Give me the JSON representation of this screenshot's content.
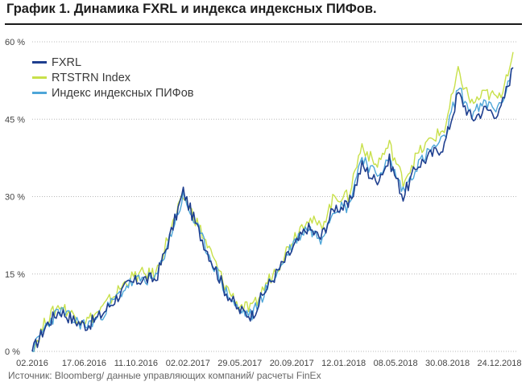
{
  "title": "График 1. Динамика FXRL и индекса индексных ПИФов.",
  "source": "Источник: Bloomberg/ данные управляющих компаний/ расчеты FinEx",
  "chart_data": {
    "type": "line",
    "title": "График 1. Динамика FXRL и индекса индексных ПИФов.",
    "xlabel": "",
    "ylabel": "",
    "ylim": [
      0,
      60
    ],
    "y_ticks": [
      0,
      15,
      30,
      45,
      60
    ],
    "y_tick_labels": [
      "0 %",
      "15 %",
      "30 %",
      "45 %",
      "60 %"
    ],
    "x_tick_labels": [
      "02.2016",
      "17.06.2016",
      "11.10.2016",
      "02.02.2017",
      "29.05.2017",
      "20.09.2017",
      "12.01.2018",
      "08.05.2018",
      "30.08.2018",
      "24.12.2018"
    ],
    "grid": "horizontal dotted",
    "legend_position": "top-left",
    "x": [
      "02.2016",
      "03.2016",
      "04.2016",
      "05.2016",
      "06.2016",
      "07.2016",
      "08.2016",
      "09.2016",
      "10.2016",
      "11.2016",
      "12.2016",
      "01.2017",
      "02.2017",
      "03.2017",
      "04.2017",
      "05.2017",
      "06.2017",
      "07.2017",
      "08.2017",
      "09.2017",
      "10.2017",
      "11.2017",
      "12.2017",
      "01.2018",
      "02.2018",
      "03.2018",
      "04.2018",
      "05.2018",
      "06.2018",
      "07.2018",
      "08.2018",
      "09.2018",
      "10.2018",
      "11.2018",
      "12.2018",
      "01.2019"
    ],
    "series": [
      {
        "name": "FXRL",
        "color": "#1f3f8f",
        "values": [
          0,
          5,
          8,
          6,
          5,
          7,
          10,
          13,
          14,
          14,
          22,
          31,
          24,
          18,
          12,
          8,
          7,
          12,
          16,
          20,
          24,
          22,
          28,
          28,
          36,
          33,
          37,
          30,
          36,
          38,
          40,
          50,
          45,
          47,
          46,
          55
        ]
      },
      {
        "name": "RTSTRN Index",
        "color": "#c8e04a",
        "values": [
          0,
          6,
          9,
          7,
          6,
          8,
          11,
          14,
          15,
          15,
          23,
          30,
          25,
          19,
          13,
          9,
          8,
          13,
          17,
          22,
          26,
          24,
          30,
          30,
          40,
          36,
          40,
          33,
          38,
          41,
          43,
          54,
          48,
          50,
          49,
          58
        ]
      },
      {
        "name": "Индекс индексных ПИФов",
        "color": "#4ea6d8",
        "values": [
          0,
          5,
          8,
          6,
          5,
          7,
          10,
          13,
          14,
          14,
          22,
          30,
          24,
          18,
          12,
          8,
          7,
          12,
          16,
          21,
          24,
          22,
          28,
          28,
          38,
          34,
          37,
          31,
          36,
          39,
          41,
          51,
          46,
          48,
          47,
          55
        ]
      }
    ]
  }
}
